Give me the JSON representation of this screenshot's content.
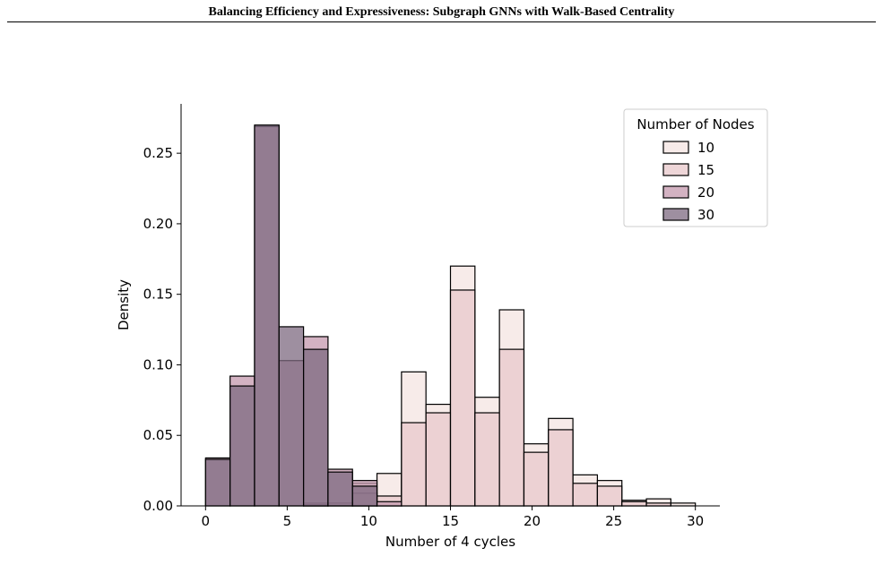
{
  "header": {
    "title": "Balancing Efficiency and Expressiveness: Subgraph GNNs with Walk-Based Centrality"
  },
  "caption": {
    "text": ""
  },
  "colors": {
    "10": "#f4e4e2",
    "15": "#e8c8cb",
    "20": "#c498ad",
    "30": "#7e6a80",
    "edge": "#000000"
  },
  "chart_data": {
    "type": "bar",
    "xlabel": "Number of 4 cycles",
    "ylabel": "Density",
    "xlim": [
      -1.5,
      31.5
    ],
    "ylim": [
      0,
      0.285
    ],
    "xticks": [
      0,
      5,
      10,
      15,
      20,
      25,
      30
    ],
    "yticks": [
      0.0,
      0.05,
      0.1,
      0.15,
      0.2,
      0.25
    ],
    "yticklabels": [
      "0.00",
      "0.05",
      "0.10",
      "0.15",
      "0.20",
      "0.25"
    ],
    "bin_edges": [
      0,
      1.5,
      3,
      4.5,
      6,
      7.5,
      9,
      10.5,
      12,
      13.5,
      15,
      16.5,
      18,
      19.5,
      21,
      22.5,
      24,
      25.5,
      27,
      28.5,
      30
    ],
    "legend": {
      "title": "Number of Nodes",
      "position": "top-right"
    },
    "series": [
      {
        "name": "10",
        "values": [
          0,
          0,
          0,
          0,
          0.002,
          0,
          0.016,
          0.023,
          0.095,
          0.072,
          0.17,
          0.077,
          0.139,
          0.044,
          0.062,
          0.022,
          0.018,
          0.004,
          0.005,
          0.002
        ]
      },
      {
        "name": "15",
        "values": [
          0,
          0,
          0,
          0,
          0.001,
          0.002,
          0.009,
          0.007,
          0.059,
          0.066,
          0.153,
          0.066,
          0.111,
          0.038,
          0.054,
          0.016,
          0.014,
          0.003,
          0.002,
          0
        ]
      },
      {
        "name": "20",
        "values": [
          0.034,
          0.092,
          0.269,
          0.103,
          0.12,
          0.026,
          0.018,
          0.003,
          0,
          0,
          0,
          0,
          0,
          0,
          0,
          0,
          0,
          0,
          0,
          0
        ]
      },
      {
        "name": "30",
        "values": [
          0.033,
          0.085,
          0.27,
          0.127,
          0.111,
          0.024,
          0.014,
          0,
          0,
          0,
          0,
          0,
          0,
          0,
          0,
          0,
          0,
          0,
          0,
          0
        ]
      }
    ]
  }
}
